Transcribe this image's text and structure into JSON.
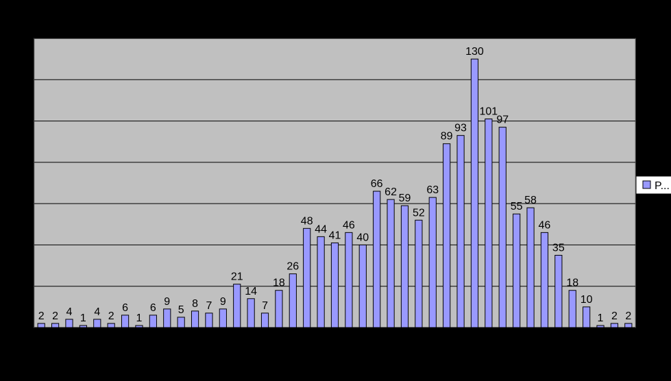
{
  "chart_data": {
    "type": "bar",
    "title": "",
    "xlabel": "",
    "ylabel": "",
    "ylim": [
      0,
      140
    ],
    "grid": true,
    "legend_position": "right",
    "colors": {
      "page_background": "#000000",
      "plot_background": "#c0c0c0",
      "bar_fill": "#9999ff",
      "bar_stroke": "#000000",
      "gridline": "#000000"
    },
    "series": [
      {
        "name": "P...",
        "values": [
          2,
          2,
          4,
          1,
          4,
          2,
          6,
          1,
          6,
          9,
          5,
          8,
          7,
          9,
          21,
          14,
          7,
          18,
          26,
          48,
          44,
          41,
          46,
          40,
          66,
          62,
          59,
          52,
          63,
          89,
          93,
          130,
          101,
          97,
          55,
          58,
          46,
          35,
          18,
          10,
          1,
          2,
          2
        ]
      }
    ]
  }
}
